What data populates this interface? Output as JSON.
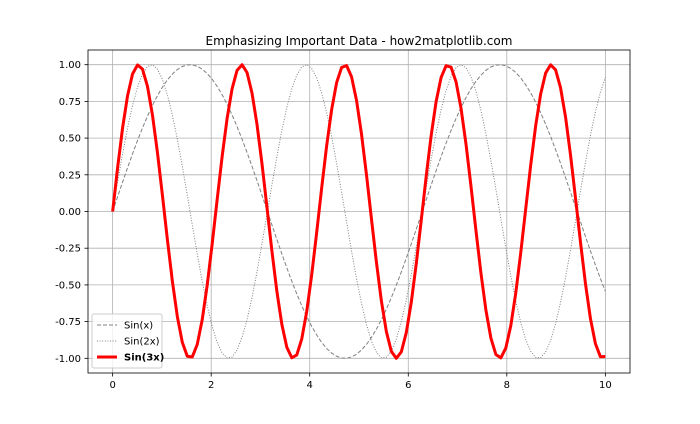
{
  "chart_data": {
    "type": "line",
    "title": "Emphasizing Important Data - how2matplotlib.com",
    "xlabel": "",
    "ylabel": "",
    "xlim": [
      -0.5,
      10.5
    ],
    "ylim": [
      -1.1,
      1.1
    ],
    "xticks": [
      0,
      2,
      4,
      6,
      8,
      10
    ],
    "xtick_labels": [
      "0",
      "2",
      "4",
      "6",
      "8",
      "10"
    ],
    "yticks": [
      1.0,
      0.75,
      0.5,
      0.25,
      0.0,
      -0.25,
      -0.5,
      -0.75,
      -1.0
    ],
    "ytick_labels": [
      "1.00",
      "0.75",
      "0.50",
      "0.25",
      "0.00",
      "-0.25",
      "-0.50",
      "-0.75",
      "-1.00"
    ],
    "grid": true,
    "legend_position": "lower left",
    "x_domain": [
      0,
      10
    ],
    "x_points": 100,
    "series": [
      {
        "name": "Sin(x)",
        "function": "sin(x)",
        "frequency": 1,
        "color": "#808080",
        "style": "dashed",
        "linewidth": 1,
        "bold_label": false
      },
      {
        "name": "Sin(2x)",
        "function": "sin(2x)",
        "frequency": 2,
        "color": "#808080",
        "style": "dotted",
        "linewidth": 1,
        "bold_label": false
      },
      {
        "name": "Sin(3x)",
        "function": "sin(3x)",
        "frequency": 3,
        "color": "#ff0000",
        "style": "solid",
        "linewidth": 3,
        "bold_label": true
      }
    ]
  }
}
